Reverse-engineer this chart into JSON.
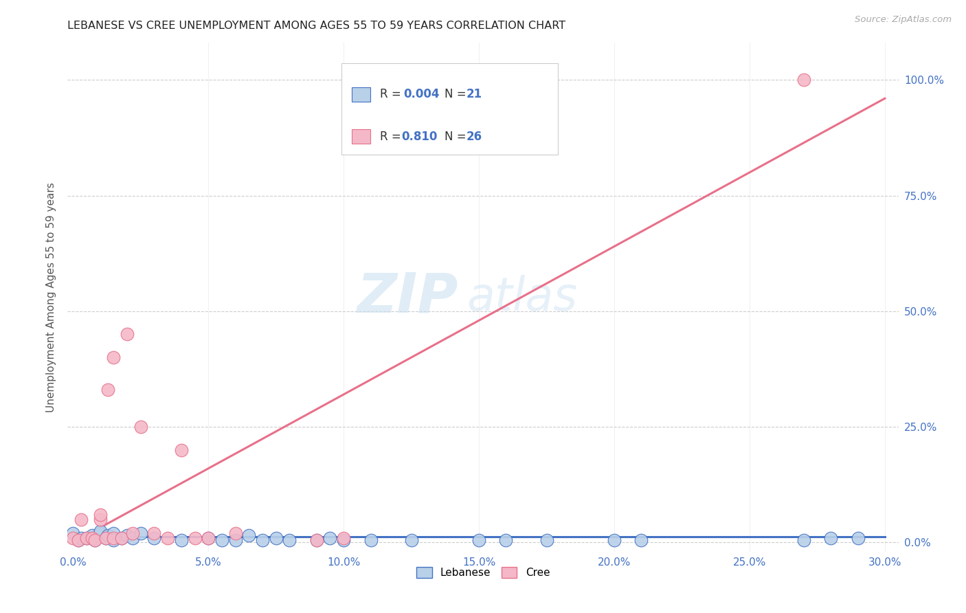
{
  "title": "LEBANESE VS CREE UNEMPLOYMENT AMONG AGES 55 TO 59 YEARS CORRELATION CHART",
  "source": "Source: ZipAtlas.com",
  "ylabel_label": "Unemployment Among Ages 55 to 59 years",
  "lebanese_color": "#b8d0e8",
  "cree_color": "#f4b8c8",
  "lebanese_line_color": "#4472c4",
  "cree_line_color": "#e8708a",
  "watermark_zip": "ZIP",
  "watermark_atlas": "atlas",
  "lebanese_scatter_x": [
    0.0,
    0.002,
    0.003,
    0.005,
    0.007,
    0.008,
    0.01,
    0.01,
    0.012,
    0.013,
    0.015,
    0.015,
    0.018,
    0.02,
    0.022,
    0.025,
    0.03,
    0.04,
    0.05,
    0.055,
    0.06,
    0.065,
    0.07,
    0.075,
    0.08,
    0.09,
    0.095,
    0.1,
    0.11,
    0.125,
    0.15,
    0.16,
    0.175,
    0.2,
    0.21,
    0.27,
    0.28,
    0.29
  ],
  "lebanese_scatter_y": [
    0.02,
    0.005,
    0.01,
    0.01,
    0.015,
    0.005,
    0.02,
    0.025,
    0.01,
    0.015,
    0.02,
    0.005,
    0.01,
    0.015,
    0.01,
    0.02,
    0.01,
    0.005,
    0.01,
    0.005,
    0.005,
    0.015,
    0.005,
    0.01,
    0.005,
    0.005,
    0.01,
    0.005,
    0.005,
    0.005,
    0.005,
    0.005,
    0.005,
    0.005,
    0.005,
    0.005,
    0.01,
    0.01
  ],
  "cree_scatter_x": [
    0.0,
    0.002,
    0.003,
    0.005,
    0.007,
    0.008,
    0.01,
    0.01,
    0.012,
    0.013,
    0.015,
    0.015,
    0.018,
    0.02,
    0.022,
    0.025,
    0.03,
    0.035,
    0.04,
    0.045,
    0.05,
    0.06,
    0.09,
    0.1,
    0.27
  ],
  "cree_scatter_y": [
    0.01,
    0.005,
    0.05,
    0.01,
    0.01,
    0.005,
    0.05,
    0.06,
    0.01,
    0.33,
    0.4,
    0.01,
    0.01,
    0.45,
    0.02,
    0.25,
    0.02,
    0.01,
    0.2,
    0.01,
    0.01,
    0.02,
    0.005,
    0.01,
    1.0
  ],
  "leb_line_x": [
    0.0,
    0.3
  ],
  "leb_line_y": [
    0.012,
    0.012
  ],
  "cree_line_x": [
    0.0,
    0.3
  ],
  "cree_line_y": [
    0.0,
    0.96
  ],
  "xlim": [
    -0.002,
    0.305
  ],
  "ylim": [
    -0.02,
    1.08
  ],
  "x_tick_vals": [
    0.0,
    0.05,
    0.1,
    0.15,
    0.2,
    0.25,
    0.3
  ],
  "x_tick_labels": [
    "0.0%",
    "5.0%",
    "10.0%",
    "15.0%",
    "20.0%",
    "25.0%",
    "30.0%"
  ],
  "y_tick_vals": [
    0.0,
    0.25,
    0.5,
    0.75,
    1.0
  ],
  "y_tick_labels": [
    "0.0%",
    "25.0%",
    "50.0%",
    "75.0%",
    "100.0%"
  ]
}
